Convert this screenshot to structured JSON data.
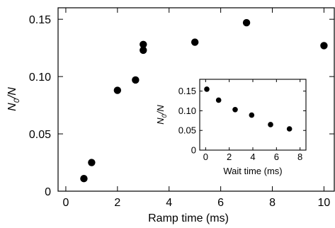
{
  "chart_data": [
    {
      "type": "scatter",
      "xlabel": "Ramp time (ms)",
      "ylabel": "N0/N",
      "xlim": [
        -0.3,
        10.4
      ],
      "ylim": [
        0,
        0.16
      ],
      "xticks": [
        "0",
        "2",
        "4",
        "6",
        "8",
        "10"
      ],
      "yticks": [
        "0",
        "0.05",
        "0.10",
        "0.15"
      ],
      "points": [
        {
          "x": 0.7,
          "y": 0.011
        },
        {
          "x": 1.0,
          "y": 0.025
        },
        {
          "x": 2.0,
          "y": 0.088
        },
        {
          "x": 2.7,
          "y": 0.097
        },
        {
          "x": 3.0,
          "y": 0.123
        },
        {
          "x": 3.0,
          "y": 0.128
        },
        {
          "x": 5.0,
          "y": 0.13
        },
        {
          "x": 7.0,
          "y": 0.147
        },
        {
          "x": 10.0,
          "y": 0.127
        }
      ]
    },
    {
      "type": "scatter",
      "xlabel": "Wait time (ms)",
      "ylabel": "N0/N",
      "xlim": [
        -0.5,
        8.5
      ],
      "ylim": [
        0,
        0.18
      ],
      "xticks": [
        "0",
        "2",
        "4",
        "6",
        "8"
      ],
      "yticks": [
        "0",
        "0.05",
        "0.10",
        "0.15"
      ],
      "points": [
        {
          "x": 0.1,
          "y": 0.155
        },
        {
          "x": 1.1,
          "y": 0.127
        },
        {
          "x": 2.5,
          "y": 0.103
        },
        {
          "x": 3.9,
          "y": 0.089
        },
        {
          "x": 5.5,
          "y": 0.065
        },
        {
          "x": 7.1,
          "y": 0.054
        }
      ]
    }
  ]
}
